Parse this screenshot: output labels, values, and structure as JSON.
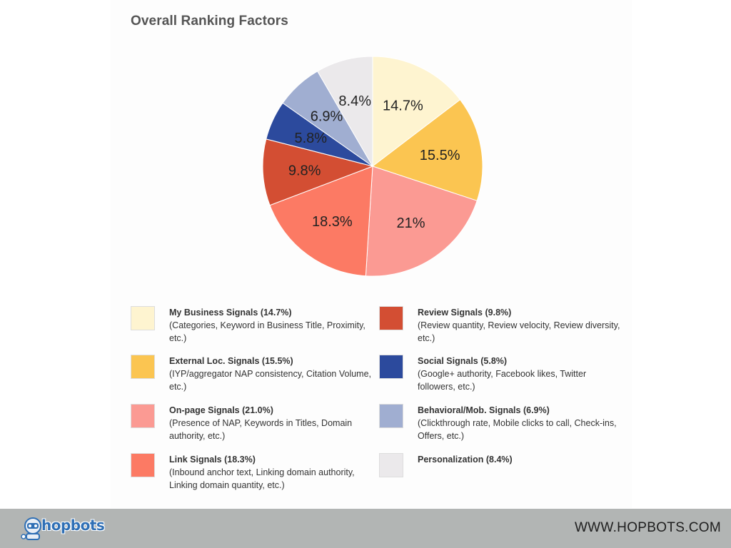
{
  "chart_data": {
    "type": "pie",
    "title": "Overall Ranking Factors",
    "slices": [
      {
        "label": "My Business Signals",
        "value": 14.7,
        "display": "14.7%",
        "color": "#fef4d0"
      },
      {
        "label": "External Loc. Signals",
        "value": 15.5,
        "display": "15.5%",
        "color": "#fbc551"
      },
      {
        "label": "On-page Signals",
        "value": 21.0,
        "display": "21%",
        "color": "#fb9a93"
      },
      {
        "label": "Link Signals",
        "value": 18.3,
        "display": "18.3%",
        "color": "#fc7a64"
      },
      {
        "label": "Review Signals",
        "value": 9.8,
        "display": "9.8%",
        "color": "#d34e33"
      },
      {
        "label": "Social Signals",
        "value": 5.8,
        "display": "5.8%",
        "color": "#2c4a9d"
      },
      {
        "label": "Behavioral/Mob. Signals",
        "value": 6.9,
        "display": "6.9%",
        "color": "#a0aed1"
      },
      {
        "label": "Personalization",
        "value": 8.4,
        "display": "8.4%",
        "color": "#ebe9eb"
      }
    ]
  },
  "legend": [
    {
      "name": "My Business Signals (14.7%)",
      "desc": "(Categories, Keyword in Business Title, Proximity, etc.)",
      "color": "#fef4d0"
    },
    {
      "name": "External Loc. Signals (15.5%)",
      "desc": "(IYP/aggregator NAP consistency, Citation Volume, etc.)",
      "color": "#fbc551"
    },
    {
      "name": "On-page Signals (21.0%)",
      "desc": "(Presence of NAP, Keywords in Titles, Domain authority, etc.)",
      "color": "#fb9a93"
    },
    {
      "name": "Link Signals (18.3%)",
      "desc": "(Inbound anchor text, Linking domain authority, Linking domain quantity, etc.)",
      "color": "#fc7a64"
    },
    {
      "name": "Review Signals (9.8%)",
      "desc": "(Review quantity, Review velocity, Review diversity, etc.)",
      "color": "#d34e33"
    },
    {
      "name": "Social Signals (5.8%)",
      "desc": "(Google+ authority, Facebook likes, Twitter followers, etc.)",
      "color": "#2c4a9d"
    },
    {
      "name": "Behavioral/Mob. Signals (6.9%)",
      "desc": "(Clickthrough rate, Mobile clicks to call, Check-ins, Offers, etc.)",
      "color": "#a0aed1"
    },
    {
      "name": "Personalization (8.4%)",
      "desc": "",
      "color": "#ebe9eb"
    }
  ],
  "footer": {
    "logo_text": "hopbots",
    "logo_icon": "robot-mascot-icon",
    "site_url": "WWW.HOPBOTS.COM",
    "background": "#b2b5b4"
  }
}
